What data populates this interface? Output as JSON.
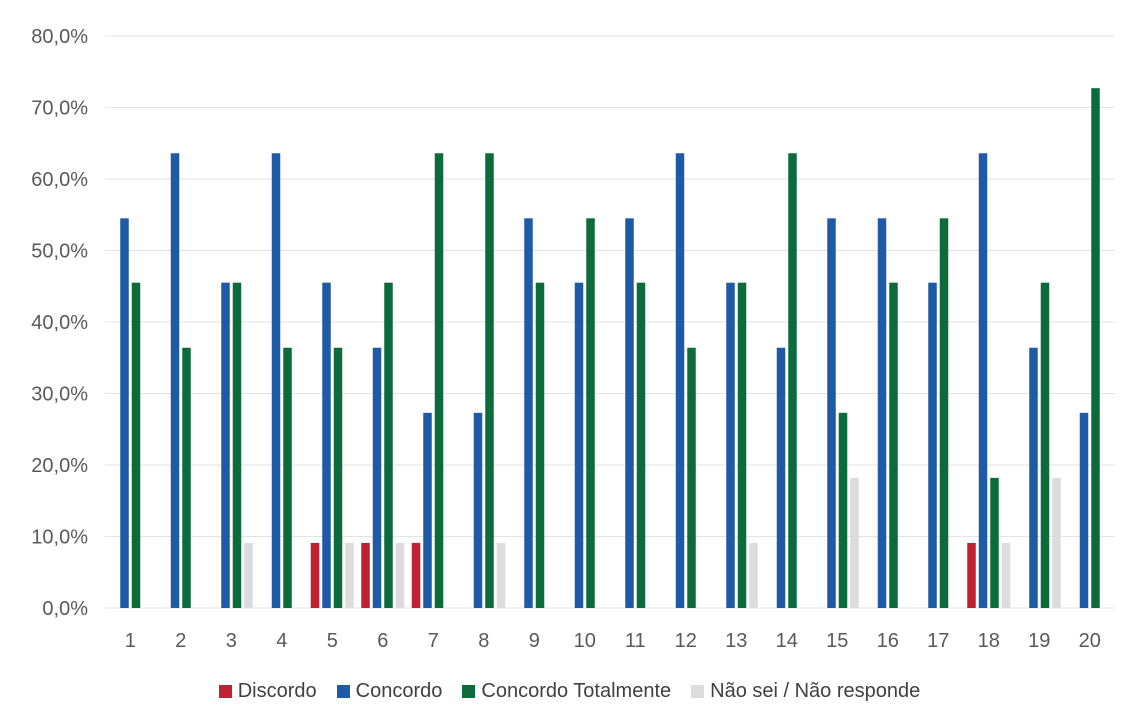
{
  "chart_data": {
    "type": "bar",
    "categories": [
      "1",
      "2",
      "3",
      "4",
      "5",
      "6",
      "7",
      "8",
      "9",
      "10",
      "11",
      "12",
      "13",
      "14",
      "15",
      "16",
      "17",
      "18",
      "19",
      "20"
    ],
    "series": [
      {
        "name": "Discordo",
        "color": "#c0202f",
        "values": [
          0,
          0,
          0,
          0,
          9.1,
          9.1,
          9.1,
          0,
          0,
          0,
          0,
          0,
          0,
          0,
          0,
          0,
          0,
          9.1,
          0,
          0
        ]
      },
      {
        "name": "Concordo",
        "color": "#1f5aa6",
        "values": [
          54.5,
          63.6,
          45.5,
          63.6,
          45.5,
          36.4,
          27.3,
          27.3,
          54.5,
          45.5,
          54.5,
          63.6,
          45.5,
          36.4,
          54.5,
          54.5,
          45.5,
          63.6,
          36.4,
          27.3
        ]
      },
      {
        "name": "Concordo Totalmente",
        "color": "#0b6b3a",
        "values": [
          45.5,
          36.4,
          45.5,
          36.4,
          36.4,
          45.5,
          63.6,
          63.6,
          45.5,
          54.5,
          45.5,
          36.4,
          45.5,
          63.6,
          27.3,
          45.5,
          54.5,
          18.2,
          45.5,
          72.7
        ]
      },
      {
        "name": "Não sei / Não responde",
        "color": "#dcdcdc",
        "values": [
          0,
          0,
          9.1,
          0,
          9.1,
          9.1,
          0,
          9.1,
          0,
          0,
          0,
          0,
          9.1,
          0,
          18.2,
          0,
          0,
          9.1,
          18.2,
          0
        ]
      }
    ],
    "y_ticks": [
      "0,0%",
      "10,0%",
      "20,0%",
      "30,0%",
      "40,0%",
      "50,0%",
      "60,0%",
      "70,0%",
      "80,0%"
    ],
    "ylim": [
      0,
      80
    ],
    "grid": true,
    "legend_position": "bottom"
  }
}
